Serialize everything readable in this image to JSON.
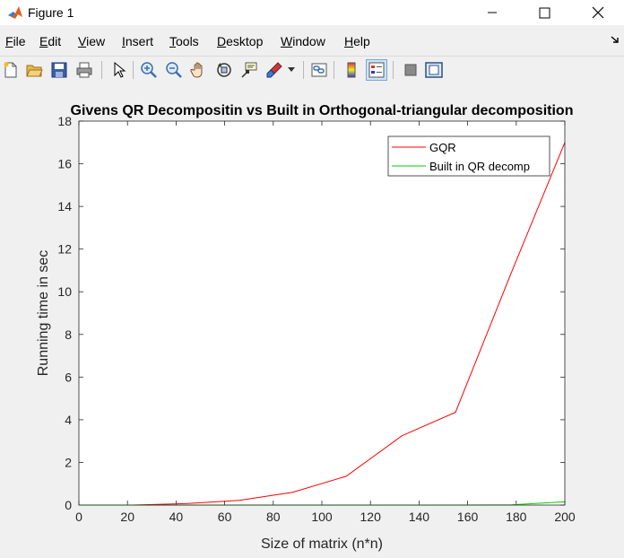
{
  "window": {
    "title": "Figure 1"
  },
  "menu": {
    "items": [
      {
        "pre": "",
        "ul": "F",
        "post": "ile"
      },
      {
        "pre": "",
        "ul": "E",
        "post": "dit"
      },
      {
        "pre": "",
        "ul": "V",
        "post": "iew"
      },
      {
        "pre": "",
        "ul": "I",
        "post": "nsert"
      },
      {
        "pre": "",
        "ul": "T",
        "post": "ools"
      },
      {
        "pre": "",
        "ul": "D",
        "post": "esktop"
      },
      {
        "pre": "",
        "ul": "W",
        "post": "indow"
      },
      {
        "pre": "",
        "ul": "H",
        "post": "elp"
      }
    ]
  },
  "toolbar": {
    "icons": [
      "new-figure-icon",
      "open-file-icon",
      "save-icon",
      "print-icon",
      "pointer-icon",
      "zoom-in-icon",
      "zoom-out-icon",
      "pan-hand-icon",
      "rotate-3d-icon",
      "data-cursor-icon",
      "brush-icon",
      "link-plot-icon",
      "colorbar-icon",
      "legend-icon",
      "hide-plot-tools-icon",
      "show-plot-tools-icon"
    ]
  },
  "chart_data": {
    "type": "line",
    "title": "Givens QR Decompositin vs Built in Orthogonal-triangular decomposition",
    "xlabel": "Size of matrix (n*n)",
    "ylabel": "Running time in sec",
    "xlim": [
      0,
      200
    ],
    "ylim": [
      0,
      18
    ],
    "xticks": [
      0,
      20,
      40,
      60,
      80,
      100,
      120,
      140,
      160,
      180,
      200
    ],
    "yticks": [
      0,
      2,
      4,
      6,
      8,
      10,
      12,
      14,
      16,
      18
    ],
    "legend_position": "top-right",
    "series": [
      {
        "name": "GQR",
        "color": "#ff0000",
        "x": [
          0,
          22,
          44,
          66,
          88,
          110,
          133,
          155,
          178,
          200
        ],
        "y": [
          0,
          0,
          0.07,
          0.22,
          0.6,
          1.35,
          3.25,
          4.35,
          10.9,
          17.0
        ]
      },
      {
        "name": "Built in QR decomp",
        "color": "#00cc00",
        "x": [
          0,
          22,
          44,
          66,
          88,
          110,
          133,
          155,
          178,
          200
        ],
        "y": [
          0,
          0,
          0,
          0,
          0,
          0,
          0,
          0,
          0.01,
          0.15
        ]
      }
    ]
  }
}
